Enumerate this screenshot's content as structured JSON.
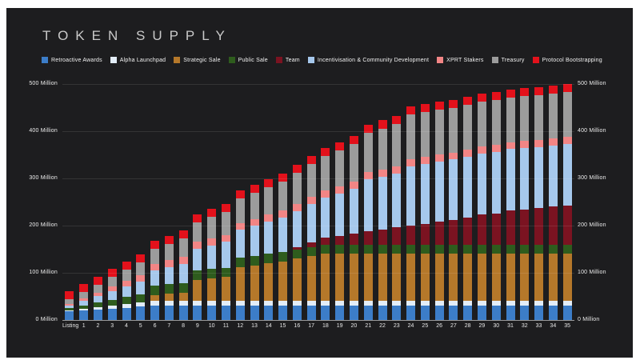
{
  "page": {
    "background": "#ffffff",
    "card_background": "#1d1d1f"
  },
  "header": {
    "title": "TOKEN SUPPLY"
  },
  "chart_data": {
    "type": "bar",
    "stacked": true,
    "title": "TOKEN SUPPLY",
    "xlabel": "",
    "ylabel": "",
    "y_unit": "Million",
    "ylim": [
      0,
      500
    ],
    "grid": true,
    "legend_position": "top",
    "y_ticks": [
      "0 Million",
      "100 Million",
      "200 Million",
      "300 Million",
      "400 Million",
      "500 Million"
    ],
    "y_tick_values": [
      0,
      100,
      200,
      300,
      400,
      500
    ],
    "y_axis_sides": [
      "left",
      "right"
    ],
    "categories": [
      "Listing",
      "1",
      "2",
      "3",
      "4",
      "5",
      "6",
      "7",
      "8",
      "9",
      "10",
      "11",
      "12",
      "13",
      "14",
      "15",
      "16",
      "17",
      "18",
      "19",
      "20",
      "21",
      "22",
      "23",
      "24",
      "25",
      "26",
      "27",
      "28",
      "29",
      "30",
      "31",
      "32",
      "33",
      "34",
      "35"
    ],
    "series": [
      {
        "name": "Retroactive Awards",
        "color": "#3C7DC8",
        "values": [
          18,
          20,
          22,
          24,
          26,
          28,
          30,
          30,
          30,
          30,
          30,
          30,
          30,
          30,
          30,
          30,
          30,
          30,
          30,
          30,
          30,
          30,
          30,
          30,
          30,
          30,
          30,
          30,
          30,
          30,
          30,
          30,
          30,
          30,
          30,
          30
        ]
      },
      {
        "name": "Alpha Launchpad",
        "color": "#E3EDF8",
        "values": [
          2.5,
          3.75,
          5,
          6.25,
          7.5,
          8.75,
          10,
          10,
          10,
          10,
          10,
          10,
          10,
          10,
          10,
          10,
          10,
          10,
          10,
          10,
          10,
          10,
          10,
          10,
          10,
          10,
          10,
          10,
          10,
          10,
          10,
          10,
          10,
          10,
          10,
          10
        ]
      },
      {
        "name": "Strategic Sale",
        "color": "#B5782A",
        "values": [
          0,
          0,
          0,
          0,
          0,
          0,
          12.5,
          15.5,
          18.5,
          45,
          48,
          51,
          72,
          76,
          80,
          84,
          90,
          95,
          100,
          100,
          100,
          100,
          100,
          100,
          100,
          100,
          100,
          100,
          100,
          100,
          100,
          100,
          100,
          100,
          100,
          100
        ]
      },
      {
        "name": "Public Sale",
        "color": "#2E5C1D",
        "values": [
          5,
          7.5,
          10,
          12.5,
          15,
          17.5,
          20,
          20,
          20,
          20,
          20,
          20,
          20,
          20,
          20,
          20,
          20,
          20,
          20,
          20,
          20,
          20,
          20,
          20,
          20,
          20,
          20,
          20,
          20,
          20,
          20,
          20,
          20,
          20,
          20,
          20
        ]
      },
      {
        "name": "Team",
        "color": "#7B1321",
        "values": [
          0,
          0,
          0,
          0,
          0,
          0,
          0,
          0,
          0,
          0,
          0,
          0,
          0,
          0,
          0,
          0,
          4,
          9,
          14,
          18,
          23,
          28,
          32,
          36,
          40,
          44,
          48,
          52,
          57,
          63,
          66,
          72,
          74,
          77,
          80,
          83
        ]
      },
      {
        "name": "Incentivisation & Community Development",
        "color": "#A6C8EC",
        "values": [
          5,
          9.5,
          14,
          18.5,
          23,
          27.5,
          32,
          36.5,
          41,
          45.5,
          50,
          54.5,
          59,
          63.5,
          68,
          72.5,
          77,
          81.5,
          86,
          90.5,
          95,
          110,
          112,
          114,
          126,
          127,
          127.5,
          128,
          128.5,
          129.5,
          130,
          130,
          130,
          130,
          130,
          130
        ]
      },
      {
        "name": "XPRT Stakers",
        "color": "#F28585",
        "values": [
          3.75,
          5.6,
          7.5,
          9.4,
          11.25,
          13.1,
          15,
          15,
          15,
          15,
          15,
          15,
          15,
          15,
          15,
          15,
          15,
          15,
          15,
          15,
          15,
          15,
          15,
          15,
          15,
          15,
          15,
          15,
          15,
          15,
          15,
          15,
          15,
          15,
          15,
          15
        ]
      },
      {
        "name": "Treasury",
        "color": "#9C9C9C",
        "values": [
          10,
          13.5,
          17,
          20.5,
          24,
          27.5,
          31,
          34.5,
          38,
          41.5,
          45,
          48.5,
          52,
          55.5,
          59,
          62.5,
          66,
          69.5,
          73,
          76.5,
          80,
          83.5,
          87,
          91,
          95,
          95,
          95,
          95,
          95,
          95,
          95,
          95,
          95,
          95,
          95,
          95
        ]
      },
      {
        "name": "Protocol Bootstrapping",
        "color": "#E3111B",
        "values": [
          17,
          17,
          17,
          17,
          17,
          17,
          17,
          17,
          17,
          17,
          17,
          17,
          17,
          17,
          17,
          17,
          17,
          17,
          17,
          17,
          17,
          17,
          17,
          17,
          17,
          17,
          17,
          17,
          17,
          17,
          17,
          17,
          17,
          17,
          17,
          17
        ]
      }
    ]
  }
}
